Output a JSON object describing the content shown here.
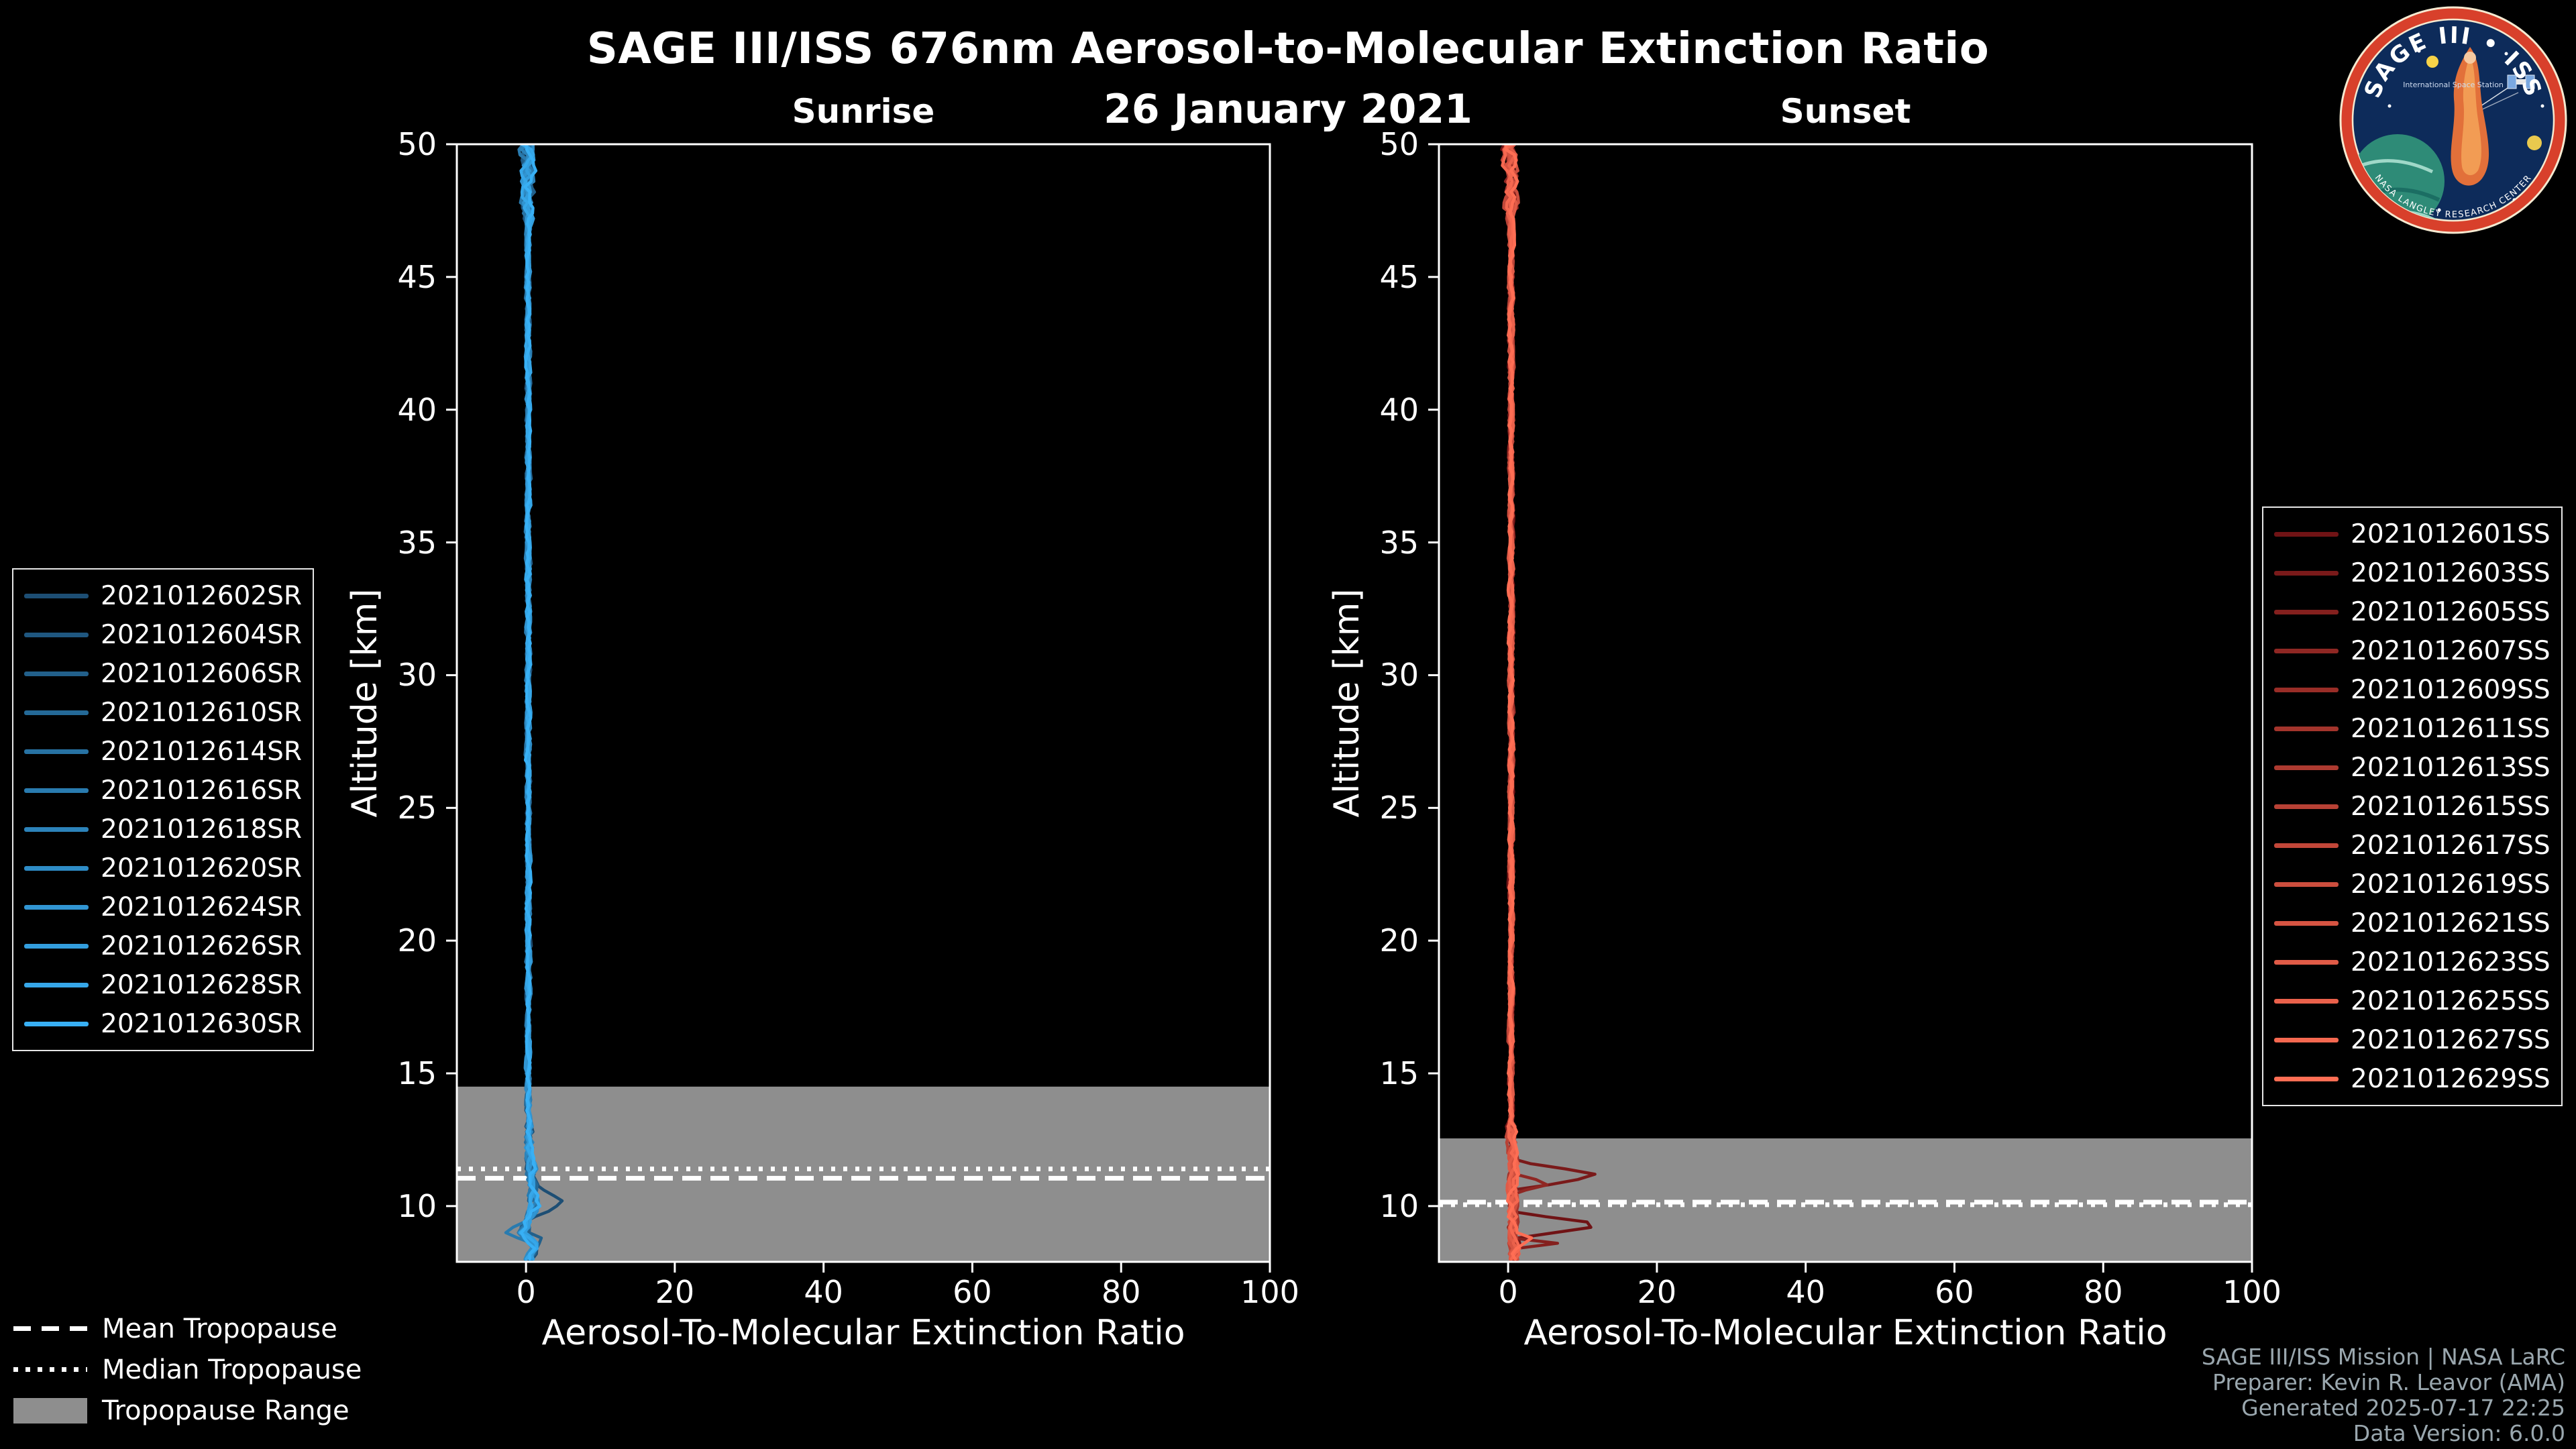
{
  "header": {
    "title": "SAGE III/ISS 676nm Aerosol-to-Molecular Extinction Ratio",
    "date": "26 January 2021"
  },
  "logo": {
    "title": "SAGE III • ISS",
    "subtitle": "International Space Station",
    "ring_text": "NASA LANGLEY RESEARCH CENTER"
  },
  "colors": {
    "background": "#000000",
    "band": "#8e8e8e",
    "axis": "#ffffff",
    "credits_text": "#9aa7ae"
  },
  "tropo_legend": {
    "items": [
      {
        "style": "dashed",
        "label": "Mean Tropopause"
      },
      {
        "style": "dotted",
        "label": "Median Tropopause"
      },
      {
        "style": "patch",
        "label": "Tropopause Range"
      }
    ]
  },
  "credits": {
    "lines": [
      "SAGE III/ISS Mission | NASA LaRC",
      "Preparer: Kevin R. Leavor (AMA)",
      "Generated 2025-07-17 22:25",
      "Data Version: 6.0.0"
    ]
  },
  "chart_data": [
    {
      "type": "line",
      "panel": "sunrise",
      "title": "Sunrise",
      "xlabel": "Aerosol-To-Molecular Extinction Ratio",
      "ylabel": "Altitude [km]",
      "xlim": [
        -9.3,
        100
      ],
      "ylim": [
        7.9,
        50
      ],
      "x_ticks": [
        0,
        20,
        40,
        60,
        80,
        100
      ],
      "y_ticks": [
        10,
        15,
        20,
        25,
        30,
        35,
        40,
        45,
        50
      ],
      "grid": false,
      "legend_position": "outside-left",
      "tropopause": {
        "mean_km": 11.05,
        "median_km": 11.4,
        "range_km": [
          7.9,
          14.5
        ]
      },
      "profile": [
        [
          50,
          0.3
        ],
        [
          14,
          0.3
        ],
        [
          12,
          0.5
        ],
        [
          10.5,
          0.9
        ],
        [
          10,
          1.2
        ],
        [
          9.5,
          0.4
        ],
        [
          9,
          -0.4
        ],
        [
          8.5,
          1.2
        ],
        [
          7.9,
          0.4
        ]
      ],
      "series": [
        {
          "label": "2021012602SR",
          "color": "#1d4e74",
          "seed": 11,
          "bumps": [
            {
              "alt": 10.15,
              "w": 0.7,
              "amp": 3.6
            }
          ]
        },
        {
          "label": "2021012604SR",
          "color": "#1f5780",
          "seed": 22
        },
        {
          "label": "2021012606SR",
          "color": "#22608b",
          "seed": 33,
          "bumps": [
            {
              "alt": 8.8,
              "w": 0.5,
              "amp": 2.0
            }
          ]
        },
        {
          "label": "2021012610SR",
          "color": "#246997",
          "seed": 44
        },
        {
          "label": "2021012614SR",
          "color": "#2772a3",
          "seed": 55
        },
        {
          "label": "2021012616SR",
          "color": "#297baf",
          "seed": 66,
          "bumps": [
            {
              "alt": 9.0,
              "w": 0.5,
              "amp": -2.0
            }
          ]
        },
        {
          "label": "2021012618SR",
          "color": "#2c83ba",
          "seed": 77
        },
        {
          "label": "2021012620SR",
          "color": "#2e8cc6",
          "seed": 88
        },
        {
          "label": "2021012624SR",
          "color": "#3195d2",
          "seed": 99
        },
        {
          "label": "2021012626SR",
          "color": "#339ede",
          "seed": 110
        },
        {
          "label": "2021012628SR",
          "color": "#36a7e9",
          "seed": 121
        },
        {
          "label": "2021012630SR",
          "color": "#38b0f5",
          "seed": 132
        }
      ]
    },
    {
      "type": "line",
      "panel": "sunset",
      "title": "Sunset",
      "xlabel": "Aerosol-To-Molecular Extinction Ratio",
      "ylabel": "Altitude [km]",
      "xlim": [
        -9.3,
        100
      ],
      "ylim": [
        7.9,
        50
      ],
      "x_ticks": [
        0,
        20,
        40,
        60,
        80,
        100
      ],
      "y_ticks": [
        10,
        15,
        20,
        25,
        30,
        35,
        40,
        45,
        50
      ],
      "grid": false,
      "legend_position": "outside-right",
      "tropopause": {
        "mean_km": 10.15,
        "median_km": 10.05,
        "range_km": [
          7.9,
          12.55
        ]
      },
      "profile": [
        [
          50,
          0.4
        ],
        [
          13,
          0.4
        ],
        [
          11.5,
          0.7
        ],
        [
          10,
          0.6
        ],
        [
          8,
          0.8
        ]
      ],
      "series": [
        {
          "label": "2021012601SS",
          "color": "#701315",
          "seed": 7,
          "bumps": [
            {
              "alt": 9.3,
              "w": 0.5,
              "amp": 12.5
            }
          ]
        },
        {
          "label": "2021012603SS",
          "color": "#7a1a1a",
          "seed": 14,
          "bumps": [
            {
              "alt": 11.15,
              "w": 0.55,
              "amp": 12.0
            }
          ]
        },
        {
          "label": "2021012605SS",
          "color": "#84201e",
          "seed": 21,
          "bumps": [
            {
              "alt": 8.6,
              "w": 0.2,
              "amp": 6.0
            }
          ]
        },
        {
          "label": "2021012607SS",
          "color": "#8f2723",
          "seed": 28,
          "bumps": [
            {
              "alt": 10.85,
              "w": 0.35,
              "amp": 6.0
            }
          ]
        },
        {
          "label": "2021012609SS",
          "color": "#992d27",
          "seed": 35
        },
        {
          "label": "2021012611SS",
          "color": "#a3342c",
          "seed": 42
        },
        {
          "label": "2021012613SS",
          "color": "#ad3a30",
          "seed": 49
        },
        {
          "label": "2021012615SS",
          "color": "#b74135",
          "seed": 56
        },
        {
          "label": "2021012617SS",
          "color": "#c24739",
          "seed": 63
        },
        {
          "label": "2021012619SS",
          "color": "#cc4e3e",
          "seed": 70
        },
        {
          "label": "2021012621SS",
          "color": "#d65442",
          "seed": 77
        },
        {
          "label": "2021012623SS",
          "color": "#e05b47",
          "seed": 84
        },
        {
          "label": "2021012625SS",
          "color": "#ea614b",
          "seed": 91
        },
        {
          "label": "2021012627SS",
          "color": "#f56850",
          "seed": 98
        },
        {
          "label": "2021012629SS",
          "color": "#ff6e54",
          "seed": 105,
          "bumps": [
            {
              "alt": 8.75,
              "w": 0.3,
              "amp": 3.0
            }
          ]
        }
      ]
    }
  ]
}
